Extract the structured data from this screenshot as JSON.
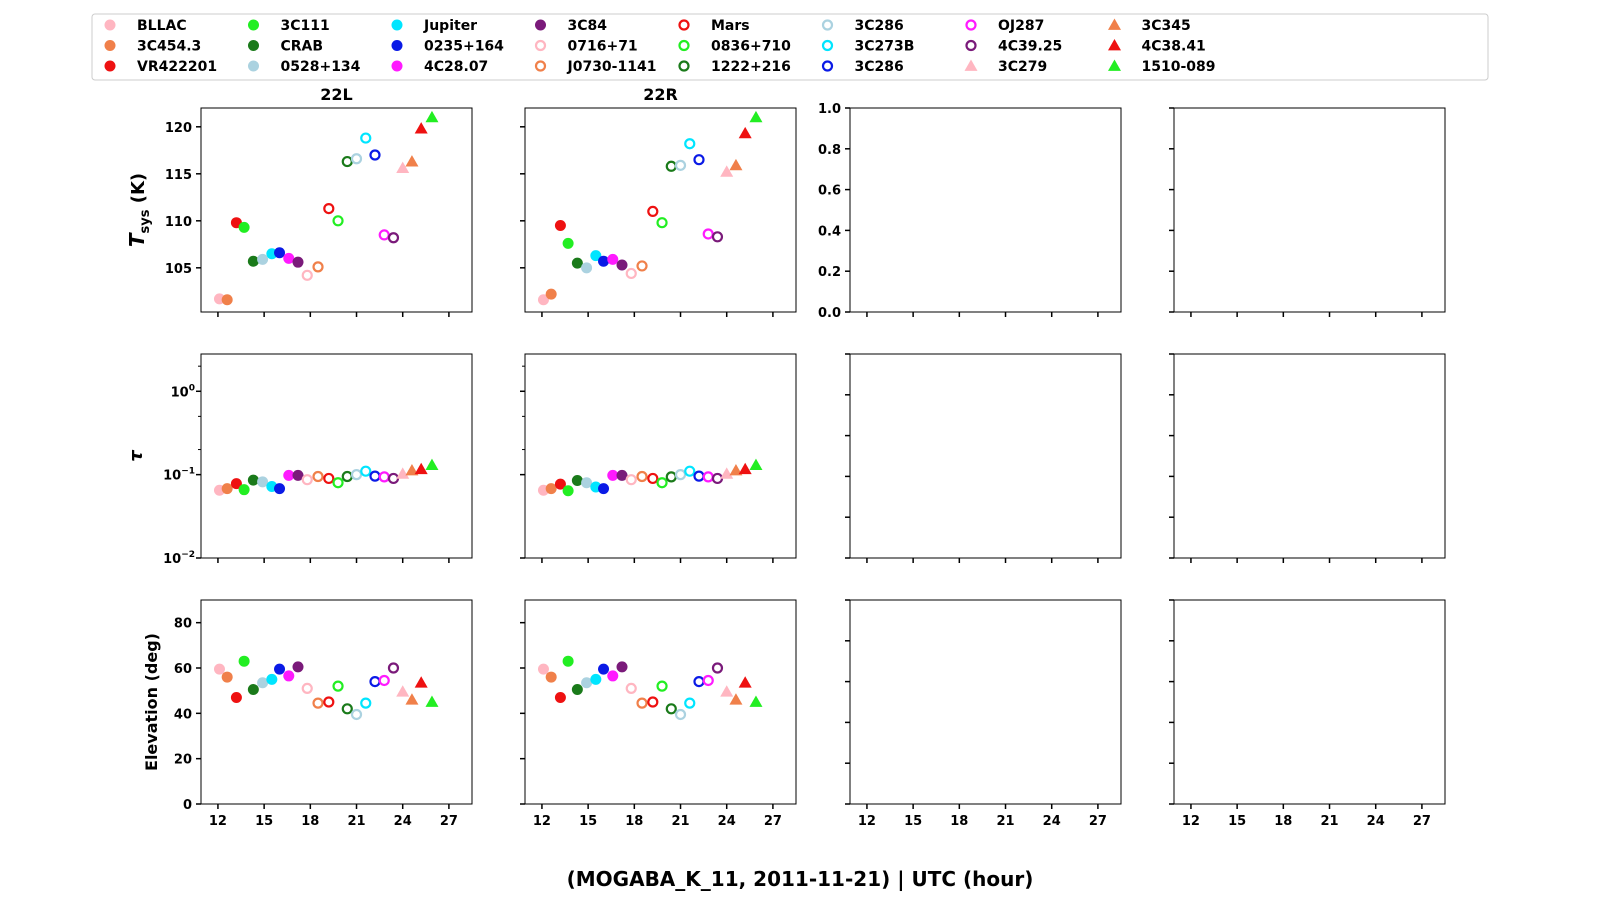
{
  "chart_data": {
    "type": "scatter",
    "xlabel": "(MOGABA_K_11, 2011-11-21) | UTC (hour)",
    "columns": [
      "22L",
      "22R",
      "",
      ""
    ],
    "rows": [
      {
        "id": "tsys",
        "ylabel_main": "T",
        "ylabel_sub": "sys",
        "ylabel_rest": " (K)",
        "scale": "linear",
        "ylim": [
          100.3,
          122
        ],
        "ticks": [
          105,
          110,
          115,
          120
        ],
        "tick_labels": [
          "105",
          "110",
          "115",
          "120"
        ]
      },
      {
        "id": "tau",
        "ylabel_main": "τ",
        "scale": "log",
        "ylim": [
          0.01,
          2.8
        ],
        "ticks": [
          0.01,
          0.1,
          1
        ],
        "tick_labels": [
          "10",
          "10",
          "10"
        ],
        "tick_exponents": [
          "−2",
          "−1",
          "0"
        ]
      },
      {
        "id": "elevation",
        "ylabel_main": "Elevation (deg)",
        "scale": "linear",
        "ylim": [
          0,
          90
        ],
        "ticks": [
          0,
          20,
          40,
          60,
          80
        ],
        "tick_labels": [
          "0",
          "20",
          "40",
          "60",
          "80"
        ]
      }
    ],
    "empty_ylim": [
      0,
      1
    ],
    "empty_ticks": [
      0,
      0.2,
      0.4,
      0.6,
      0.8,
      1.0
    ],
    "empty_tick_labels": [
      "0.0",
      "0.2",
      "0.4",
      "0.6",
      "0.8",
      "1.0"
    ],
    "xlim": [
      10.9,
      28.5
    ],
    "xticks": [
      12,
      15,
      18,
      21,
      24,
      27
    ],
    "xtick_labels": [
      "12",
      "15",
      "18",
      "21",
      "24",
      "27"
    ],
    "legend_position": "top",
    "series": [
      {
        "name": "BLLAC",
        "marker": "dot",
        "color": "#ffb6c1",
        "x": 12.1,
        "tsys": [
          101.7,
          101.6
        ],
        "tau": [
          0.065,
          0.065
        ],
        "elev": [
          59.5,
          59.5
        ]
      },
      {
        "name": "3C454.3",
        "marker": "dot",
        "color": "#f0804a",
        "x": 12.6,
        "tsys": [
          101.6,
          102.2
        ],
        "tau": [
          0.068,
          0.068
        ],
        "elev": [
          56,
          56
        ]
      },
      {
        "name": "VR422201",
        "marker": "dot",
        "color": "#ee1111",
        "x": 13.2,
        "tsys": [
          109.8,
          109.5
        ],
        "tau": [
          0.078,
          0.077
        ],
        "elev": [
          47,
          47
        ]
      },
      {
        "name": "3C111",
        "marker": "dot",
        "color": "#22ee22",
        "x": 13.7,
        "tsys": [
          109.3,
          107.6
        ],
        "tau": [
          0.066,
          0.064
        ],
        "elev": [
          63,
          63
        ]
      },
      {
        "name": "CRAB",
        "marker": "dot",
        "color": "#1a7a1a",
        "x": 14.3,
        "tsys": [
          105.7,
          105.5
        ],
        "tau": [
          0.086,
          0.085
        ],
        "elev": [
          50.5,
          50.5
        ]
      },
      {
        "name": "0528+134",
        "marker": "dot",
        "color": "#abd2e0",
        "x": 14.9,
        "tsys": [
          105.9,
          105.0
        ],
        "tau": [
          0.082,
          0.08
        ],
        "elev": [
          53.5,
          53.5
        ]
      },
      {
        "name": "Jupiter",
        "marker": "dot",
        "color": "#00e5ff",
        "x": 15.5,
        "tsys": [
          106.5,
          106.3
        ],
        "tau": [
          0.072,
          0.071
        ],
        "elev": [
          55,
          55
        ]
      },
      {
        "name": "0235+164",
        "marker": "dot",
        "color": "#0a1ae6",
        "x": 16.0,
        "tsys": [
          106.6,
          105.7
        ],
        "tau": [
          0.068,
          0.068
        ],
        "elev": [
          59.5,
          59.5
        ]
      },
      {
        "name": "4C28.07",
        "marker": "dot",
        "color": "#ff1aff",
        "x": 16.6,
        "tsys": [
          106.0,
          105.9
        ],
        "tau": [
          0.098,
          0.098
        ],
        "elev": [
          56.5,
          56.5
        ]
      },
      {
        "name": "3C84",
        "marker": "dot",
        "color": "#7a1a7a",
        "x": 17.2,
        "tsys": [
          105.6,
          105.3
        ],
        "tau": [
          0.098,
          0.098
        ],
        "elev": [
          60.5,
          60.5
        ]
      },
      {
        "name": "0716+71",
        "marker": "ring",
        "color": "#ffb6c1",
        "x": 17.8,
        "tsys": [
          104.2,
          104.4
        ],
        "tau": [
          0.087,
          0.087
        ],
        "elev": [
          51,
          51
        ]
      },
      {
        "name": "J0730-1141",
        "marker": "ring",
        "color": "#f0804a",
        "x": 18.5,
        "tsys": [
          105.1,
          105.2
        ],
        "tau": [
          0.095,
          0.095
        ],
        "elev": [
          44.5,
          44.5
        ]
      },
      {
        "name": "Mars",
        "marker": "ring",
        "color": "#ee1111",
        "x": 19.2,
        "tsys": [
          111.3,
          111.0
        ],
        "tau": [
          0.09,
          0.09
        ],
        "elev": [
          45,
          45
        ]
      },
      {
        "name": "0836+710",
        "marker": "ring",
        "color": "#22ee22",
        "x": 19.8,
        "tsys": [
          110.0,
          109.8
        ],
        "tau": [
          0.08,
          0.08
        ],
        "elev": [
          52,
          52
        ]
      },
      {
        "name": "1222+216",
        "marker": "ring",
        "color": "#1a7a1a",
        "x": 20.4,
        "tsys": [
          116.3,
          115.8
        ],
        "tau": [
          0.095,
          0.094
        ],
        "elev": [
          42,
          42
        ]
      },
      {
        "name": "3C286",
        "marker": "ring",
        "color": "#abd2e0",
        "x": 21.0,
        "tsys": [
          116.6,
          115.9
        ],
        "tau": [
          0.1,
          0.1
        ],
        "elev": [
          39.5,
          39.5
        ]
      },
      {
        "name": "3C273B",
        "marker": "ring",
        "color": "#00e5ff",
        "x": 21.6,
        "tsys": [
          118.8,
          118.2
        ],
        "tau": [
          0.11,
          0.11
        ],
        "elev": [
          44.5,
          44.5
        ]
      },
      {
        "name": "3C286",
        "marker": "ring",
        "color": "#0a1ae6",
        "x": 22.2,
        "tsys": [
          117.0,
          116.5
        ],
        "tau": [
          0.096,
          0.096
        ],
        "elev": [
          54,
          54
        ]
      },
      {
        "name": "OJ287",
        "marker": "ring",
        "color": "#ff1aff",
        "x": 22.8,
        "tsys": [
          108.5,
          108.6
        ],
        "tau": [
          0.094,
          0.094
        ],
        "elev": [
          54.5,
          54.5
        ]
      },
      {
        "name": "4C39.25",
        "marker": "ring",
        "color": "#7a1a7a",
        "x": 23.4,
        "tsys": [
          108.2,
          108.3
        ],
        "tau": [
          0.09,
          0.09
        ],
        "elev": [
          60,
          60
        ]
      },
      {
        "name": "3C279",
        "marker": "triangle",
        "color": "#ffb6c1",
        "x": 24.0,
        "tsys": [
          115.6,
          115.2
        ],
        "tau": [
          0.102,
          0.102
        ],
        "elev": [
          49.5,
          49.5
        ]
      },
      {
        "name": "3C345",
        "marker": "triangle",
        "color": "#f0804a",
        "x": 24.6,
        "tsys": [
          116.3,
          115.9
        ],
        "tau": [
          0.112,
          0.112
        ],
        "elev": [
          46,
          46
        ]
      },
      {
        "name": "4C38.41",
        "marker": "triangle",
        "color": "#ee1111",
        "x": 25.2,
        "tsys": [
          119.8,
          119.3
        ],
        "tau": [
          0.116,
          0.116
        ],
        "elev": [
          53.5,
          53.5
        ]
      },
      {
        "name": "1510-089",
        "marker": "triangle",
        "color": "#22ee22",
        "x": 25.9,
        "tsys": [
          121.0,
          121.0
        ],
        "tau": [
          0.13,
          0.13
        ],
        "elev": [
          45,
          45
        ]
      }
    ]
  }
}
